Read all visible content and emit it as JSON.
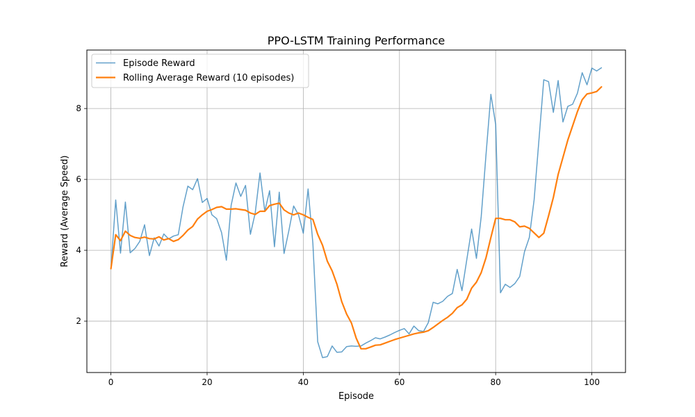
{
  "chart_data": {
    "type": "line",
    "title": "PPO-LSTM Training Performance",
    "xlabel": "Episode",
    "ylabel": "Reward (Average Speed)",
    "xlim": [
      -5,
      107
    ],
    "ylim": [
      0.55,
      9.65
    ],
    "xticks": [
      0,
      20,
      40,
      60,
      80,
      100
    ],
    "yticks": [
      2,
      4,
      6,
      8
    ],
    "grid": true,
    "legend_position": "top-left",
    "x": [
      0,
      1,
      2,
      3,
      4,
      5,
      6,
      7,
      8,
      9,
      10,
      11,
      12,
      13,
      14,
      15,
      16,
      17,
      18,
      19,
      20,
      21,
      22,
      23,
      24,
      25,
      26,
      27,
      28,
      29,
      30,
      31,
      32,
      33,
      34,
      35,
      36,
      37,
      38,
      39,
      40,
      41,
      42,
      43,
      44,
      45,
      46,
      47,
      48,
      49,
      50,
      51,
      52,
      53,
      54,
      55,
      56,
      57,
      58,
      59,
      60,
      61,
      62,
      63,
      64,
      65,
      66,
      67,
      68,
      69,
      70,
      71,
      72,
      73,
      74,
      75,
      76,
      77,
      78,
      79,
      80,
      81,
      82,
      83,
      84,
      85,
      86,
      87,
      88,
      89,
      90,
      91,
      92,
      93,
      94,
      95,
      96,
      97,
      98,
      99,
      100,
      101,
      102
    ],
    "series": [
      {
        "name": "Episode Reward",
        "color": "#1f77b4",
        "opacity": 0.7,
        "line_width": 1.5,
        "values": [
          3.48,
          5.42,
          3.92,
          5.36,
          3.93,
          4.05,
          4.25,
          4.72,
          3.85,
          4.35,
          4.12,
          4.46,
          4.32,
          4.4,
          4.44,
          5.23,
          5.81,
          5.71,
          6.02,
          5.35,
          5.46,
          5.0,
          4.89,
          4.5,
          3.72,
          5.27,
          5.9,
          5.52,
          5.83,
          4.45,
          5.05,
          6.18,
          5.1,
          5.68,
          4.1,
          5.64,
          3.91,
          4.55,
          5.25,
          5.0,
          4.48,
          5.73,
          4.19,
          1.42,
          0.97,
          1.0,
          1.3,
          1.12,
          1.13,
          1.28,
          1.3,
          1.29,
          1.3,
          1.38,
          1.45,
          1.53,
          1.5,
          1.55,
          1.61,
          1.68,
          1.74,
          1.79,
          1.64,
          1.86,
          1.73,
          1.71,
          1.96,
          2.53,
          2.49,
          2.56,
          2.7,
          2.78,
          3.46,
          2.86,
          3.74,
          4.6,
          3.77,
          4.95,
          6.7,
          8.4,
          7.55,
          2.8,
          3.04,
          2.95,
          3.06,
          3.26,
          3.96,
          4.36,
          5.42,
          7.1,
          8.81,
          8.76,
          7.89,
          8.79,
          7.62,
          8.06,
          8.12,
          8.43,
          9.01,
          8.67,
          9.14,
          9.06,
          9.15
        ]
      },
      {
        "name": "Rolling Average Reward (10 episodes)",
        "color": "#ff7f0e",
        "opacity": 1,
        "line_width": 2.2,
        "values": [
          3.48,
          4.44,
          4.27,
          4.54,
          4.42,
          4.36,
          4.34,
          4.37,
          4.33,
          4.32,
          4.38,
          4.29,
          4.33,
          4.25,
          4.3,
          4.42,
          4.57,
          4.67,
          4.88,
          5.0,
          5.1,
          5.15,
          5.21,
          5.23,
          5.16,
          5.16,
          5.17,
          5.15,
          5.13,
          5.05,
          5.01,
          5.1,
          5.1,
          5.26,
          5.3,
          5.33,
          5.14,
          5.05,
          5.0,
          5.05,
          5.0,
          4.93,
          4.87,
          4.45,
          4.14,
          3.69,
          3.42,
          3.04,
          2.55,
          2.2,
          1.95,
          1.52,
          1.22,
          1.22,
          1.27,
          1.32,
          1.33,
          1.38,
          1.43,
          1.48,
          1.52,
          1.56,
          1.6,
          1.64,
          1.67,
          1.69,
          1.73,
          1.82,
          1.92,
          2.02,
          2.11,
          2.22,
          2.38,
          2.46,
          2.62,
          2.93,
          3.1,
          3.37,
          3.79,
          4.36,
          4.9,
          4.9,
          4.86,
          4.86,
          4.8,
          4.66,
          4.68,
          4.62,
          4.49,
          4.36,
          4.48,
          4.97,
          5.49,
          6.14,
          6.62,
          7.11,
          7.51,
          7.91,
          8.25,
          8.41,
          8.44,
          8.48,
          8.61
        ]
      }
    ]
  }
}
